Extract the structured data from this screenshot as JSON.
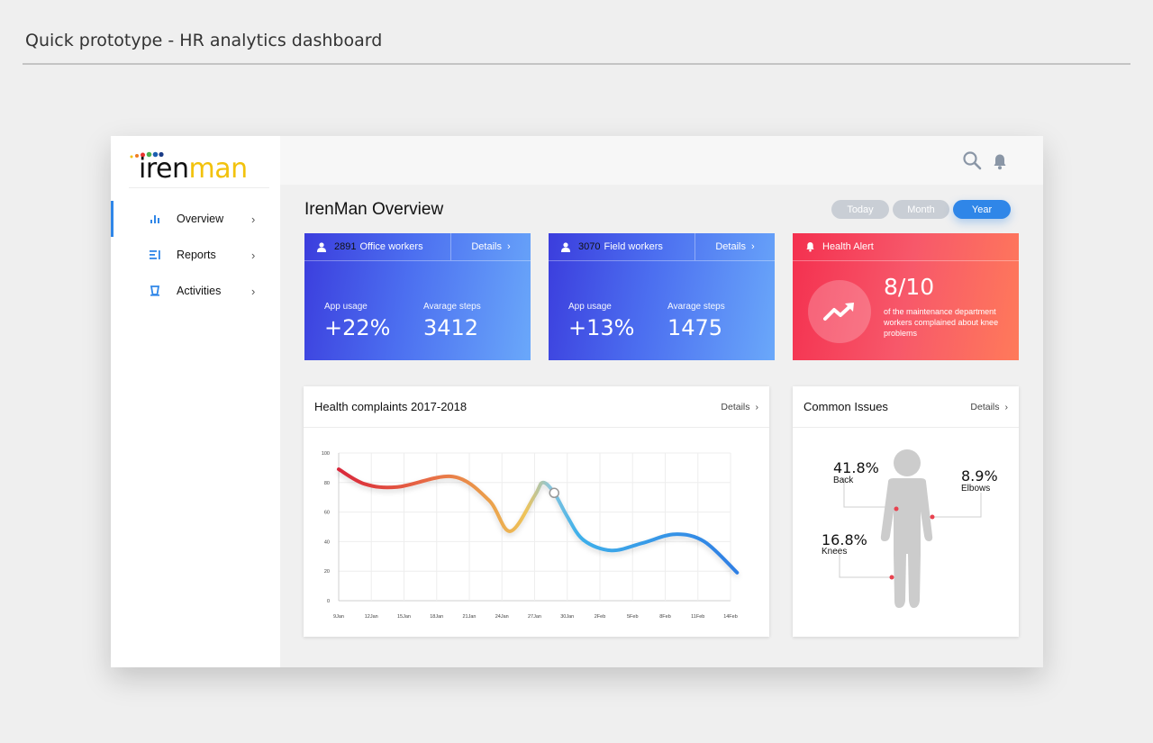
{
  "page": {
    "heading": "Quick prototype - HR analytics dashboard"
  },
  "brand": {
    "name_dark": "iren",
    "name_yellow": "man"
  },
  "sidebar": {
    "items": [
      {
        "label": "Overview",
        "icon": "bar-chart-icon"
      },
      {
        "label": "Reports",
        "icon": "list-icon"
      },
      {
        "label": "Activities",
        "icon": "activity-icon"
      }
    ]
  },
  "overview": {
    "title": "IrenMan Overview",
    "ranges": [
      "Today",
      "Month",
      "Year"
    ],
    "active_range": "Year"
  },
  "cards": {
    "office": {
      "count": "2891",
      "label": "Office workers",
      "details": "Details",
      "usage_label": "App usage",
      "usage_value": "+22%",
      "steps_label": "Avarage steps",
      "steps_value": "3412"
    },
    "field": {
      "count": "3070",
      "label": "Field workers",
      "details": "Details",
      "usage_label": "App usage",
      "usage_value": "+13%",
      "steps_label": "Avarage steps",
      "steps_value": "1475"
    },
    "alert": {
      "label": "Health Alert",
      "value": "8/10",
      "text": "of the maintenance department workers complained about knee problems"
    }
  },
  "complaints": {
    "title": "Health complaints 2017-2018",
    "details": "Details"
  },
  "issues": {
    "title": "Common Issues",
    "details": "Details",
    "back": {
      "pct": "41.8%",
      "label": "Back"
    },
    "elbows": {
      "pct": "8.9%",
      "label": "Elbows"
    },
    "knees": {
      "pct": "16.8%",
      "label": "Knees"
    }
  },
  "chart_data": {
    "type": "line",
    "title": "Health complaints 2017-2018",
    "x": [
      "9Jan",
      "12Jan",
      "15Jan",
      "18Jan",
      "21Jan",
      "24Jan",
      "27Jan",
      "30Jan",
      "2Feb",
      "5Feb",
      "8Feb",
      "11Feb",
      "14Feb"
    ],
    "y_ticks": [
      0,
      20,
      40,
      60,
      80,
      100
    ],
    "ylim": [
      0,
      100
    ],
    "series": [
      {
        "points": [
          [
            0,
            89
          ],
          [
            0.8,
            79
          ],
          [
            1.8,
            77
          ],
          [
            3.5,
            84
          ],
          [
            4.6,
            68
          ],
          [
            5.25,
            47
          ],
          [
            6.0,
            71
          ],
          [
            6.25,
            80
          ],
          [
            6.6,
            73
          ],
          [
            7.0,
            57
          ],
          [
            7.5,
            41
          ],
          [
            8.35,
            34
          ],
          [
            9.3,
            39
          ],
          [
            10.3,
            45
          ],
          [
            11.2,
            40
          ],
          [
            12.2,
            19
          ]
        ]
      }
    ],
    "marker_point": [
      6.6,
      73
    ],
    "grid": true,
    "colors": {
      "start": "#dd2c3c",
      "mid": "#f0b84a",
      "end": "#2f86e8"
    }
  }
}
